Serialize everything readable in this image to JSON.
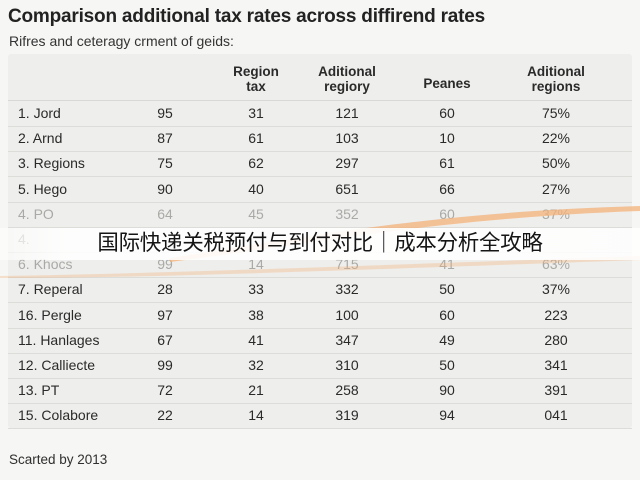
{
  "page": {
    "title": "Comparison additional tax rates across diffirend rates",
    "subtitle": "Rifres and ceteragy crment of geids:",
    "footer": "Scarted by 2013",
    "banner": "国际快递关税预付与到付对比｜成本分析全攻略"
  },
  "table": {
    "headers": [
      "",
      "",
      "Region\ntax",
      "Aditional\nregiory",
      "Peanes",
      "Aditional\nregions"
    ],
    "rows": [
      {
        "name": "1. Jord",
        "values": [
          "95",
          "31",
          "121",
          "60",
          "75%"
        ]
      },
      {
        "name": "2. Arnd",
        "values": [
          "87",
          "61",
          "103",
          "10",
          "22%"
        ]
      },
      {
        "name": "3. Regions",
        "values": [
          "75",
          "62",
          "297",
          "61",
          "50%"
        ]
      },
      {
        "name": "5. Hego",
        "values": [
          "90",
          "40",
          "651",
          "66",
          "27%"
        ]
      },
      {
        "name": "4. PO",
        "values": [
          "64",
          "45",
          "352",
          "60",
          "37%"
        ],
        "faded": true
      },
      {
        "name": "4.",
        "values": [
          "",
          "",
          "",
          "",
          ""
        ],
        "faded": true
      },
      {
        "name": "6. Khocs",
        "values": [
          "99",
          "14",
          "715",
          "41",
          "63%"
        ],
        "faded": true
      },
      {
        "name": "7. Reperal",
        "values": [
          "28",
          "33",
          "332",
          "50",
          "37%"
        ]
      },
      {
        "name": "16. Pergle",
        "values": [
          "97",
          "38",
          "100",
          "60",
          "223"
        ]
      },
      {
        "name": "11. Hanlages",
        "values": [
          "67",
          "41",
          "347",
          "49",
          "280"
        ]
      },
      {
        "name": "12. Calliecte",
        "values": [
          "99",
          "32",
          "310",
          "50",
          "341"
        ]
      },
      {
        "name": "13. PT",
        "values": [
          "72",
          "21",
          "258",
          "90",
          "391"
        ]
      },
      {
        "name": "15. Colabore",
        "values": [
          "22",
          "14",
          "319",
          "94",
          "041"
        ]
      }
    ]
  },
  "colors": {
    "accent_swoosh": "#f4b27a",
    "background": "#f6f6f4",
    "panel": "#eeeeec"
  }
}
